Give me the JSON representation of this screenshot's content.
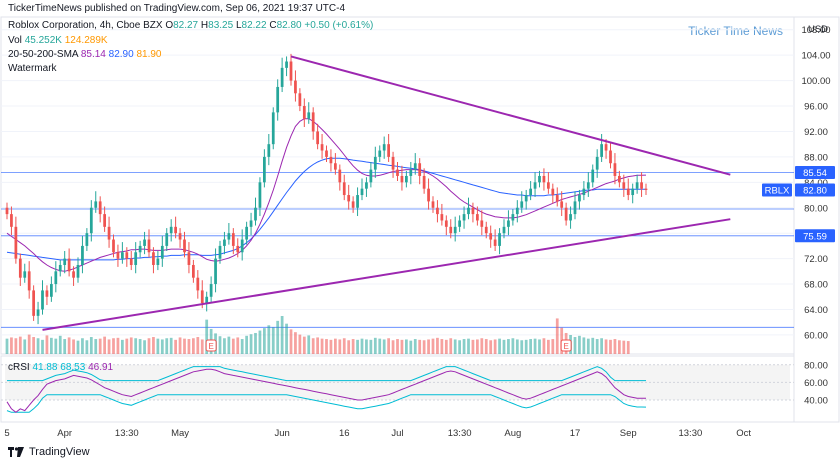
{
  "header": {
    "publisher": "TickerTimeNews published on TradingView.com, Sep 06, 2021 19:37 UTC-4",
    "symbol_line": "Roblox Corporation, 4h, Cboe BZX",
    "ohlc": {
      "o_label": "O",
      "o": "82.27",
      "h_label": "H",
      "h": "83.25",
      "l_label": "L",
      "l": "82.22",
      "c_label": "C",
      "c": "82.80",
      "chg": "+0.50 (+0.61%)"
    },
    "vol_label": "Vol",
    "vol_values": [
      "45.252K",
      "124.289K"
    ],
    "sma_label": "20-50-200-SMA",
    "sma_values": [
      "85.14",
      "82.90",
      "81.90"
    ],
    "watermark_label": "Watermark",
    "watermark_text": "Ticker Time News",
    "currency": "USD"
  },
  "colors": {
    "up": "#26a69a",
    "down": "#ef5350",
    "sma20": "#9c27b0",
    "sma50": "#2962ff",
    "sma200": "#ff9800",
    "trend": "#9c27b0",
    "hline": "#2962ff",
    "rsi": "#9c27b0",
    "rsi_band": "#00bcd4",
    "watermark": "#5b9bd5"
  },
  "chart_data": [
    {
      "type": "candlestick",
      "y_axis_ticks": [
        60.0,
        64.0,
        68.0,
        72.0,
        76.0,
        80.0,
        84.0,
        88.0,
        92.0,
        96.0,
        100.0,
        104.0,
        108.0
      ],
      "y_tick_labels": [
        "60.00",
        "64.00",
        "68.00",
        "72.00",
        "76.00",
        "80.00",
        "84.00",
        "88.00",
        "92.00",
        "96.00",
        "100.00",
        "104.00",
        "108.00"
      ],
      "ylim": [
        57.0,
        110.0
      ],
      "x_tick_labels": [
        "5",
        "Apr",
        "13:30",
        "May",
        "Jun",
        "16",
        "Jul",
        "13:30",
        "Aug",
        "17",
        "Sep",
        "13:30",
        "Oct"
      ],
      "x_tick_positions": [
        0,
        13,
        27,
        39,
        62,
        76,
        88,
        102,
        114,
        128,
        140,
        154,
        166
      ],
      "x_range": [
        0,
        176
      ],
      "price_labels": [
        {
          "text": "85.54",
          "value": 85.54,
          "color": "#2962ff"
        },
        {
          "text": "RBLX",
          "value": 82.8,
          "color": "#2962ff"
        },
        {
          "text": "82.80",
          "value": 82.8,
          "color": "#2962ff"
        },
        {
          "text": "75.59",
          "value": 75.59,
          "color": "#2962ff"
        }
      ],
      "horizontal_lines": [
        85.54,
        75.59,
        79.8,
        61.2
      ],
      "trendlines": [
        {
          "from": [
            64,
            103.8
          ],
          "to": [
            163,
            85.2
          ]
        },
        {
          "from": [
            8,
            60.8
          ],
          "to": [
            163,
            78.2
          ]
        }
      ],
      "earnings_markers": [
        {
          "x": 46,
          "text": "E"
        },
        {
          "x": 126,
          "text": "E"
        }
      ],
      "closes": [
        79,
        77,
        72,
        69,
        70,
        67,
        63,
        64,
        67,
        66,
        68,
        70,
        71,
        72,
        70,
        69,
        71,
        74,
        76,
        80,
        81,
        79,
        77,
        75,
        73,
        72,
        73,
        72,
        71,
        73,
        74,
        75,
        73,
        71,
        72,
        74,
        76,
        77,
        76,
        75,
        73,
        71,
        69,
        67,
        65,
        66,
        68,
        72,
        74,
        75,
        76,
        74,
        73,
        75,
        77,
        78,
        80,
        84,
        88,
        90,
        95,
        99,
        102,
        103,
        100,
        98,
        96,
        94,
        95,
        92,
        90,
        89,
        88,
        87,
        86,
        84,
        82,
        81,
        80,
        82,
        83,
        84,
        86,
        88,
        89,
        90,
        88,
        86,
        85,
        84,
        85,
        86,
        87,
        85,
        83,
        81,
        80,
        79,
        78,
        77,
        76,
        77,
        78,
        79,
        80,
        79,
        78,
        77,
        76,
        75,
        74,
        76,
        77,
        78,
        79,
        80,
        81,
        82,
        83,
        84,
        85,
        84,
        83,
        82,
        81,
        80,
        78,
        79,
        81,
        82,
        83,
        84,
        86,
        88,
        90,
        89,
        87,
        85,
        84,
        83,
        82,
        83,
        84,
        83,
        82.8
      ],
      "volumes": [
        3.8,
        4.1,
        3.9,
        4.3,
        3.6,
        4.8,
        4.2,
        3.9,
        3.5,
        4.6,
        4.0,
        3.8,
        4.5,
        3.7,
        4.1,
        3.6,
        3.3,
        3.9,
        3.4,
        4.2,
        3.7,
        3.8,
        4.3,
        3.6,
        3.9,
        4.0,
        3.5,
        3.8,
        4.1,
        3.9,
        3.7,
        3.4,
        3.9,
        4.2,
        3.8,
        3.6,
        3.9,
        4.0,
        3.5,
        4.1,
        3.8,
        3.7,
        3.9,
        4.2,
        3.6,
        8.5,
        6.2,
        5.1,
        4.4,
        3.9,
        4.3,
        3.8,
        4.1,
        3.7,
        4.5,
        4.9,
        5.2,
        5.8,
        6.4,
        7.1,
        6.6,
        8.2,
        9.4,
        7.5,
        6.1,
        5.4,
        4.8,
        4.3,
        4.6,
        3.9,
        4.1,
        3.8,
        3.7,
        3.5,
        3.8,
        3.6,
        3.9,
        3.4,
        3.7,
        3.5,
        3.8,
        3.6,
        3.5,
        4.0,
        3.8,
        3.6,
        3.9,
        3.4,
        3.7,
        3.5,
        3.6,
        3.3,
        3.7,
        3.5,
        3.4,
        3.6,
        3.8,
        4.0,
        3.7,
        3.5,
        3.9,
        3.6,
        3.4,
        3.7,
        3.8,
        3.5,
        3.6,
        3.9,
        3.7,
        3.4,
        3.6,
        3.8,
        3.5,
        3.7,
        3.9,
        3.6,
        3.4,
        3.5,
        3.7,
        3.8,
        3.6,
        3.9,
        3.5,
        3.7,
        8.8,
        6.5,
        5.2,
        4.7,
        4.2,
        4.5,
        4.1,
        3.8,
        4.0,
        3.7,
        3.9,
        3.6,
        3.5,
        3.7,
        3.4,
        3.3,
        3.2
      ],
      "sma20": [
        76,
        75.5,
        75,
        74.5,
        74,
        73.4,
        72.8,
        72.1,
        71.5,
        71,
        70.6,
        70.3,
        70.1,
        70,
        70.2,
        70.4,
        70.7,
        71,
        71.3,
        71.6,
        71.9,
        72.2,
        72.4,
        72.6,
        72.8,
        73,
        73.1,
        73.2,
        73.4,
        73.4,
        73.5,
        73.5,
        73.4,
        73.3,
        73.3,
        73.3,
        73.4,
        73.5,
        73.5,
        73.5,
        73.4,
        73.2,
        73,
        72.7,
        72.3,
        71.9,
        71.7,
        71.6,
        71.7,
        71.9,
        72.1,
        72.4,
        72.8,
        73.3,
        74,
        74.9,
        76,
        77.4,
        79,
        80.8,
        82.8,
        85,
        87.3,
        89.5,
        91.3,
        92.8,
        93.6,
        94,
        94,
        93.6,
        93,
        92.3,
        91.6,
        90.8,
        90,
        89.2,
        88.3,
        87.4,
        86.6,
        85.9,
        85.4,
        85.1,
        85,
        85,
        85.1,
        85.3,
        85.5,
        85.7,
        85.8,
        85.9,
        86,
        86,
        86,
        85.9,
        85.7,
        85.4,
        85,
        84.5,
        83.9,
        83.3,
        82.6,
        82,
        81.4,
        80.9,
        80.5,
        80.1,
        79.7,
        79.3,
        79,
        78.8,
        78.6,
        78.5,
        78.4,
        78.4,
        78.4,
        78.5,
        78.7,
        78.9,
        79.2,
        79.5,
        79.8,
        80.1,
        80.4,
        80.7,
        81,
        81.3,
        81.5,
        81.7,
        81.9,
        82.1,
        82.3,
        82.6,
        82.9,
        83.2,
        83.5,
        83.8,
        84,
        84.2,
        84.5,
        84.7,
        84.9,
        85,
        85.1,
        85.1,
        85.14
      ],
      "sma50": [
        73,
        72.9,
        72.8,
        72.7,
        72.6,
        72.5,
        72.4,
        72.3,
        72.2,
        72.1,
        72,
        71.9,
        71.8,
        71.8,
        71.8,
        71.8,
        71.8,
        71.8,
        71.8,
        71.8,
        71.8,
        71.8,
        71.8,
        71.8,
        71.8,
        71.9,
        71.9,
        72,
        72,
        72.1,
        72.1,
        72.2,
        72.2,
        72.3,
        72.3,
        72.4,
        72.4,
        72.5,
        72.5,
        72.5,
        72.6,
        72.6,
        72.6,
        72.6,
        72.5,
        72.5,
        72.5,
        72.6,
        72.7,
        72.9,
        73.1,
        73.3,
        73.6,
        74,
        74.5,
        75.1,
        75.8,
        76.6,
        77.5,
        78.4,
        79.4,
        80.4,
        81.4,
        82.4,
        83.3,
        84.2,
        85,
        85.7,
        86.3,
        86.8,
        87.2,
        87.5,
        87.7,
        87.8,
        87.8,
        87.8,
        87.7,
        87.6,
        87.5,
        87.4,
        87.3,
        87.2,
        87.1,
        87,
        86.9,
        86.8,
        86.7,
        86.6,
        86.5,
        86.4,
        86.3,
        86.2,
        86.1,
        86,
        85.8,
        85.6,
        85.4,
        85.2,
        85,
        84.8,
        84.6,
        84.4,
        84.2,
        84,
        83.8,
        83.6,
        83.4,
        83.2,
        83,
        82.8,
        82.6,
        82.4,
        82.3,
        82.2,
        82.1,
        82,
        82,
        81.9,
        81.9,
        81.9,
        81.9,
        81.9,
        82,
        82,
        82.1,
        82.2,
        82.3,
        82.4,
        82.5,
        82.6,
        82.7,
        82.8,
        82.8,
        82.9,
        82.9,
        82.9,
        82.9,
        82.9,
        82.9,
        82.9,
        82.9,
        82.9,
        82.9,
        82.9,
        82.9
      ],
      "rsi": [
        38,
        30,
        26,
        30,
        28,
        34,
        40,
        45,
        52,
        58,
        60,
        62,
        63,
        64,
        66,
        68,
        67,
        66,
        65,
        63,
        60,
        57,
        54,
        52,
        50,
        48,
        46,
        45,
        44,
        46,
        48,
        50,
        52,
        54,
        56,
        58,
        60,
        62,
        64,
        66,
        68,
        70,
        72,
        73,
        74,
        75,
        75,
        74,
        72,
        70,
        69,
        68,
        67,
        66,
        65,
        64,
        63,
        62,
        61,
        60,
        59,
        58,
        57,
        56,
        55,
        54,
        53,
        52,
        51,
        50,
        49,
        48,
        47,
        46,
        45,
        44,
        43,
        42,
        41,
        40,
        40,
        41,
        42,
        43,
        44,
        45,
        46,
        48,
        50,
        52,
        54,
        56,
        58,
        60,
        62,
        64,
        66,
        68,
        70,
        72,
        73,
        72,
        70,
        68,
        66,
        64,
        62,
        60,
        58,
        56,
        54,
        52,
        50,
        48,
        46,
        44,
        42,
        41,
        42,
        44,
        46,
        48,
        50,
        52,
        54,
        56,
        58,
        60,
        62,
        64,
        66,
        68,
        70,
        72,
        70,
        66,
        60,
        54,
        50,
        46,
        44,
        43,
        42,
        42,
        41.88
      ],
      "rsi_ticks": [
        40.0,
        60.0,
        80.0
      ],
      "rsi_tick_labels": [
        "40.00",
        "60.00",
        "80.00"
      ],
      "rsi_ylim": [
        15.0,
        90.0
      ],
      "rsi_label": "cRSI",
      "rsi_values": [
        "41.88",
        "68.53",
        "46.91"
      ]
    }
  ],
  "footer": {
    "brand": "TradingView"
  }
}
